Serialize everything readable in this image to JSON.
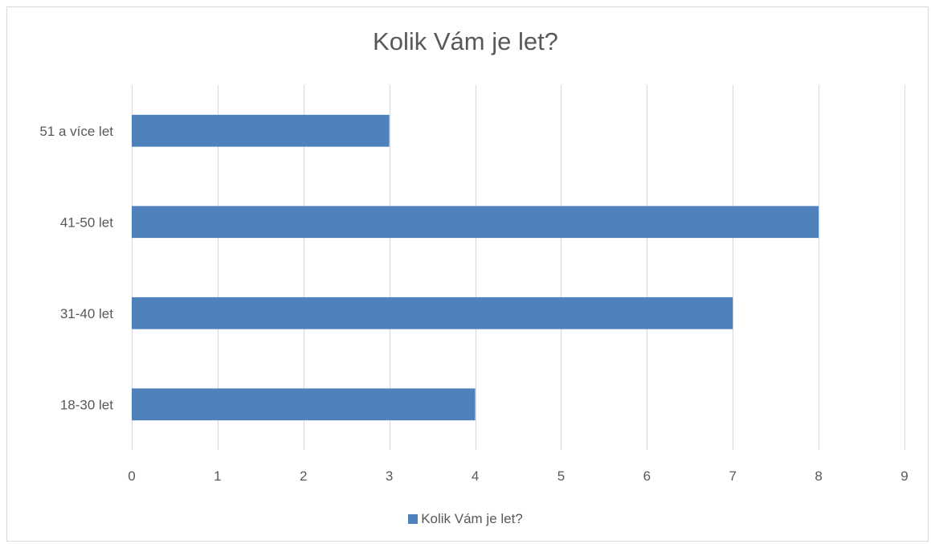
{
  "chart_data": {
    "type": "bar",
    "orientation": "horizontal",
    "title": "Kolik Vám je let?",
    "categories": [
      "18-30 let",
      "31-40 let",
      "41-50 let",
      "51 a více let"
    ],
    "series": [
      {
        "name": "Kolik Vám je let?",
        "values": [
          4,
          7,
          8,
          3
        ],
        "color": "#4f81bd"
      }
    ],
    "xlim": [
      0,
      9
    ],
    "x_ticks": [
      "0",
      "1",
      "2",
      "3",
      "4",
      "5",
      "6",
      "7",
      "8",
      "9"
    ],
    "grid": true,
    "legend": "bottom"
  },
  "colors": {
    "bar": "#4f81bd",
    "grid": "#d9d9d9",
    "text": "#595959"
  }
}
